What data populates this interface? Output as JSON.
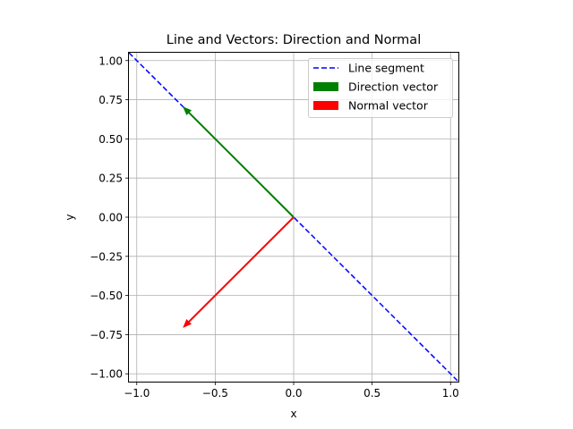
{
  "chart_data": {
    "type": "line",
    "title": "Line and Vectors: Direction and Normal",
    "xlabel": "x",
    "ylabel": "y",
    "xlim": [
      -1.05,
      1.05
    ],
    "ylim": [
      -1.05,
      1.05
    ],
    "xticks": [
      -1.0,
      -0.5,
      0.0,
      0.5,
      1.0
    ],
    "xtick_labels": [
      "−1.0",
      "−0.5",
      "0.0",
      "0.5",
      "1.0"
    ],
    "yticks": [
      1.0,
      0.75,
      0.5,
      0.25,
      0.0,
      -0.25,
      -0.5,
      -0.75,
      -1.0
    ],
    "ytick_labels": [
      "1.00",
      "0.75",
      "0.50",
      "0.25",
      "0.00",
      "−0.25",
      "−0.50",
      "−0.75",
      "−1.00"
    ],
    "grid": true,
    "legend_position": "top-right",
    "series": [
      {
        "name": "Line segment",
        "kind": "dashed-line",
        "color": "#0000ff",
        "x": [
          -1.05,
          1.05
        ],
        "y": [
          1.05,
          -1.05
        ]
      },
      {
        "name": "Direction vector",
        "kind": "arrow",
        "color": "#008000",
        "origin": [
          0,
          0
        ],
        "vector": [
          -0.707,
          0.707
        ]
      },
      {
        "name": "Normal vector",
        "kind": "arrow",
        "color": "#ff0000",
        "origin": [
          0,
          0
        ],
        "vector": [
          -0.707,
          -0.707
        ]
      }
    ]
  }
}
